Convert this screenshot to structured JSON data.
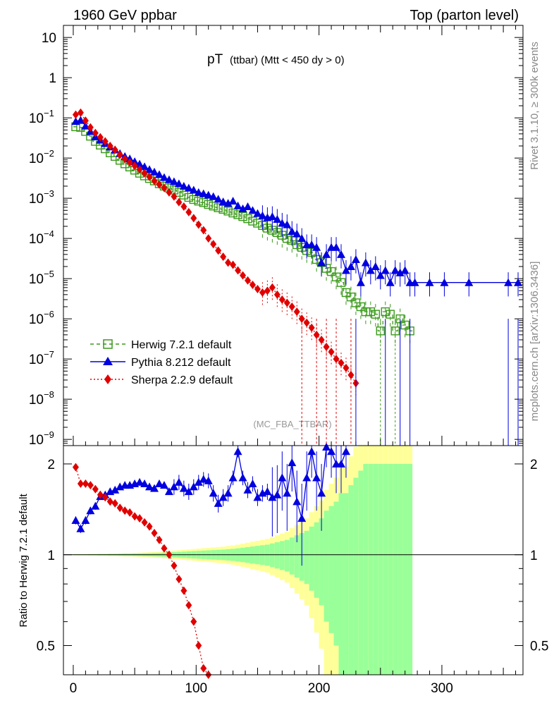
{
  "header": {
    "left": "1960 GeV ppbar",
    "right": "Top (parton level)",
    "side_version": "Rivet 3.1.10, ≥ 300k events",
    "side_ref": "mcplots.cern.ch [arXiv:1306.3436]",
    "analysis_tag": "(MC_FBA_TTBAR)"
  },
  "chart_data": {
    "type": "line",
    "title_main": "pT",
    "title_sub": "(ttbar) (Mtt < 450 dy > 0)",
    "xlim": [
      -8,
      366
    ],
    "ylim": [
      7e-10,
      20
    ],
    "xticks": [
      0,
      100,
      200,
      300
    ],
    "yticks": [
      {
        "v": 10,
        "t": "10",
        "exp": ""
      },
      {
        "v": 1,
        "t": "1",
        "exp": ""
      },
      {
        "v": 0.1,
        "t": "10",
        "exp": "−1"
      },
      {
        "v": 0.01,
        "t": "10",
        "exp": "−2"
      },
      {
        "v": 0.001,
        "t": "10",
        "exp": "−3"
      },
      {
        "v": 0.0001,
        "t": "10",
        "exp": "−4"
      },
      {
        "v": 1e-05,
        "t": "10",
        "exp": "−5"
      },
      {
        "v": 1e-06,
        "t": "10",
        "exp": "−6"
      },
      {
        "v": 1e-07,
        "t": "10",
        "exp": "−7"
      },
      {
        "v": 1e-08,
        "t": "10",
        "exp": "−8"
      },
      {
        "v": 1e-09,
        "t": "10",
        "exp": "−9"
      }
    ],
    "legend": [
      {
        "name": "Herwig 7.2.1 default",
        "color": "#3a9a1a",
        "marker": "open-square",
        "dash": "5,4"
      },
      {
        "name": "Pythia 8.212 default",
        "color": "#0000e0",
        "marker": "triangle",
        "dash": ""
      },
      {
        "name": "Sherpa 2.2.9 default",
        "color": "#e00000",
        "marker": "diamond",
        "dash": "2,3"
      }
    ],
    "series": [
      {
        "name": "Herwig 7.2.1 default",
        "x": [
          2,
          6,
          10,
          14,
          18,
          22,
          26,
          30,
          34,
          38,
          42,
          46,
          50,
          54,
          58,
          62,
          66,
          70,
          74,
          78,
          82,
          86,
          90,
          94,
          98,
          102,
          106,
          110,
          114,
          118,
          122,
          126,
          130,
          134,
          138,
          142,
          146,
          150,
          154,
          158,
          162,
          166,
          170,
          174,
          178,
          182,
          186,
          190,
          194,
          198,
          202,
          206,
          210,
          214,
          218,
          222,
          226,
          230,
          234,
          238,
          242,
          246,
          250,
          254,
          258,
          262,
          266,
          270,
          274
        ],
        "y": [
          0.06,
          0.058,
          0.046,
          0.035,
          0.026,
          0.021,
          0.017,
          0.0135,
          0.011,
          0.0088,
          0.0072,
          0.006,
          0.005,
          0.0042,
          0.0036,
          0.0031,
          0.0027,
          0.0023,
          0.002,
          0.0018,
          0.0016,
          0.0014,
          0.0012,
          0.00105,
          0.00093,
          0.00085,
          0.00078,
          0.0007,
          0.00064,
          0.00058,
          0.00053,
          0.00048,
          0.00043,
          0.00039,
          0.00035,
          0.00031,
          0.00027,
          0.00024,
          0.00021,
          0.00018,
          0.00016,
          0.00014,
          0.00012,
          0.0001,
          9e-05,
          7e-05,
          6e-05,
          5e-05,
          4.5e-05,
          3e-05,
          2.5e-05,
          1.8e-05,
          1.5e-05,
          1.1e-05,
          8e-06,
          4.5e-06,
          3.5e-06,
          2.5e-06,
          2e-06,
          1.5e-06,
          1.5e-06,
          1.3e-06,
          5e-07,
          1.5e-06,
          1.3e-06,
          5e-07,
          1e-06,
          7e-07,
          5e-07
        ]
      },
      {
        "name": "Pythia 8.212 default",
        "x": [
          2,
          6,
          10,
          14,
          18,
          22,
          26,
          30,
          34,
          38,
          42,
          46,
          50,
          54,
          58,
          62,
          66,
          70,
          74,
          78,
          82,
          86,
          90,
          94,
          98,
          102,
          106,
          110,
          114,
          118,
          122,
          126,
          130,
          134,
          138,
          142,
          146,
          150,
          154,
          158,
          162,
          166,
          170,
          174,
          178,
          182,
          186,
          190,
          194,
          198,
          202,
          206,
          210,
          214,
          218,
          222,
          226,
          230,
          234,
          238,
          242,
          246,
          250,
          254,
          258,
          262,
          266,
          270,
          274,
          278,
          290,
          302,
          322,
          354,
          362
        ],
        "y": [
          0.082,
          0.088,
          0.063,
          0.046,
          0.034,
          0.028,
          0.023,
          0.019,
          0.016,
          0.013,
          0.011,
          0.0096,
          0.0082,
          0.0071,
          0.0061,
          0.0052,
          0.0045,
          0.0039,
          0.0033,
          0.0029,
          0.0026,
          0.0023,
          0.002,
          0.0018,
          0.0016,
          0.0014,
          0.0013,
          0.0012,
          0.0011,
          0.00095,
          0.00082,
          0.00075,
          0.00085,
          0.00065,
          0.00055,
          0.00062,
          0.0005,
          0.00042,
          0.00037,
          0.00033,
          0.00035,
          0.0003,
          0.00024,
          0.00022,
          0.00015,
          0.00013,
          0.0001,
          7e-05,
          7e-05,
          6e-05,
          2.5e-05,
          4e-05,
          6e-05,
          6e-05,
          4e-05,
          1.6e-05,
          2e-05,
          3e-05,
          8e-06,
          2.5e-05,
          1.6e-05,
          2e-05,
          1.2e-05,
          1.6e-05,
          8e-06,
          1.6e-05,
          1.4e-05,
          1.6e-05,
          8e-06,
          8e-06,
          8e-06,
          8e-06,
          8e-06,
          8e-06,
          8e-06
        ]
      },
      {
        "name": "Sherpa 2.2.9 default",
        "x": [
          2,
          6,
          10,
          14,
          18,
          22,
          26,
          30,
          34,
          38,
          42,
          46,
          50,
          54,
          58,
          62,
          66,
          70,
          74,
          78,
          82,
          86,
          90,
          94,
          98,
          102,
          106,
          110,
          114,
          118,
          122,
          126,
          130,
          134,
          138,
          142,
          146,
          150,
          154,
          158,
          162,
          166,
          170,
          174,
          178,
          182,
          186,
          190,
          194,
          198,
          202,
          206,
          210,
          214,
          218,
          222,
          226,
          230
        ],
        "y": [
          0.12,
          0.135,
          0.085,
          0.058,
          0.042,
          0.033,
          0.026,
          0.02,
          0.016,
          0.012,
          0.0095,
          0.0078,
          0.0064,
          0.0052,
          0.0042,
          0.0034,
          0.0027,
          0.0022,
          0.0018,
          0.0014,
          0.0011,
          0.0008,
          0.00062,
          0.00045,
          0.00032,
          0.00022,
          0.00016,
          0.0001,
          7.2e-05,
          5e-05,
          3.5e-05,
          2.5e-05,
          2.2e-05,
          1.6e-05,
          1.2e-05,
          9e-06,
          7e-06,
          5.5e-06,
          4.5e-06,
          5e-06,
          6e-06,
          4e-06,
          3e-06,
          2.5e-06,
          2e-06,
          1.5e-06,
          1e-06,
          8e-07,
          6e-07,
          4e-07,
          3e-07,
          2e-07,
          1.5e-07,
          1e-07,
          8e-08,
          6e-08,
          4e-08,
          2.5e-08
        ]
      }
    ],
    "ratio": {
      "ylabel": "Ratio to Herwig 7.2.1 default",
      "ylim": [
        0.4,
        2.3
      ],
      "yticks": [
        {
          "v": 2,
          "t": "2"
        },
        {
          "v": 1,
          "t": "1"
        },
        {
          "v": 0.5,
          "t": "0.5"
        }
      ],
      "pythia": [
        1.3,
        1.22,
        1.3,
        1.4,
        1.45,
        1.56,
        1.58,
        1.62,
        1.64,
        1.68,
        1.7,
        1.7,
        1.72,
        1.74,
        1.72,
        1.68,
        1.66,
        1.72,
        1.7,
        1.62,
        1.68,
        1.74,
        1.66,
        1.62,
        1.68,
        1.74,
        1.78,
        1.76,
        1.6,
        1.48,
        1.55,
        1.6,
        1.8,
        2.2,
        1.8,
        1.64,
        1.72,
        1.55,
        1.6,
        1.62,
        1.55,
        1.58,
        1.8,
        1.6,
        2.02,
        1.5,
        1.32,
        1.8,
        2.2,
        1.8,
        1.6,
        2.35,
        2.2,
        2.0,
        2.0,
        2.2
      ],
      "sherpa": [
        1.95,
        1.72,
        1.72,
        1.7,
        1.65,
        1.58,
        1.55,
        1.5,
        1.48,
        1.43,
        1.4,
        1.38,
        1.34,
        1.32,
        1.28,
        1.24,
        1.18,
        1.12,
        1.05,
        1.0,
        0.92,
        0.83,
        0.76,
        0.68,
        0.6,
        0.5,
        0.42,
        0.35
      ],
      "band_halfwidth": [
        0.003,
        0.003,
        0.003,
        0.004,
        0.004,
        0.005,
        0.005,
        0.006,
        0.006,
        0.007,
        0.008,
        0.008,
        0.009,
        0.01,
        0.011,
        0.012,
        0.013,
        0.014,
        0.016,
        0.018,
        0.02,
        0.022,
        0.024,
        0.026,
        0.028,
        0.03,
        0.032,
        0.034,
        0.036,
        0.038,
        0.04,
        0.043,
        0.046,
        0.05,
        0.055,
        0.06,
        0.065,
        0.07,
        0.075,
        0.08,
        0.09,
        0.1,
        0.11,
        0.12,
        0.14,
        0.16,
        0.18,
        0.2,
        0.24,
        0.28,
        0.32,
        0.4,
        0.45,
        0.5,
        0.6,
        0.6,
        0.7,
        0.8,
        0.9,
        1.0,
        1.0,
        1.0,
        1.0,
        1.0,
        1.0,
        1.0,
        1.0,
        1.0,
        1.0
      ]
    }
  }
}
